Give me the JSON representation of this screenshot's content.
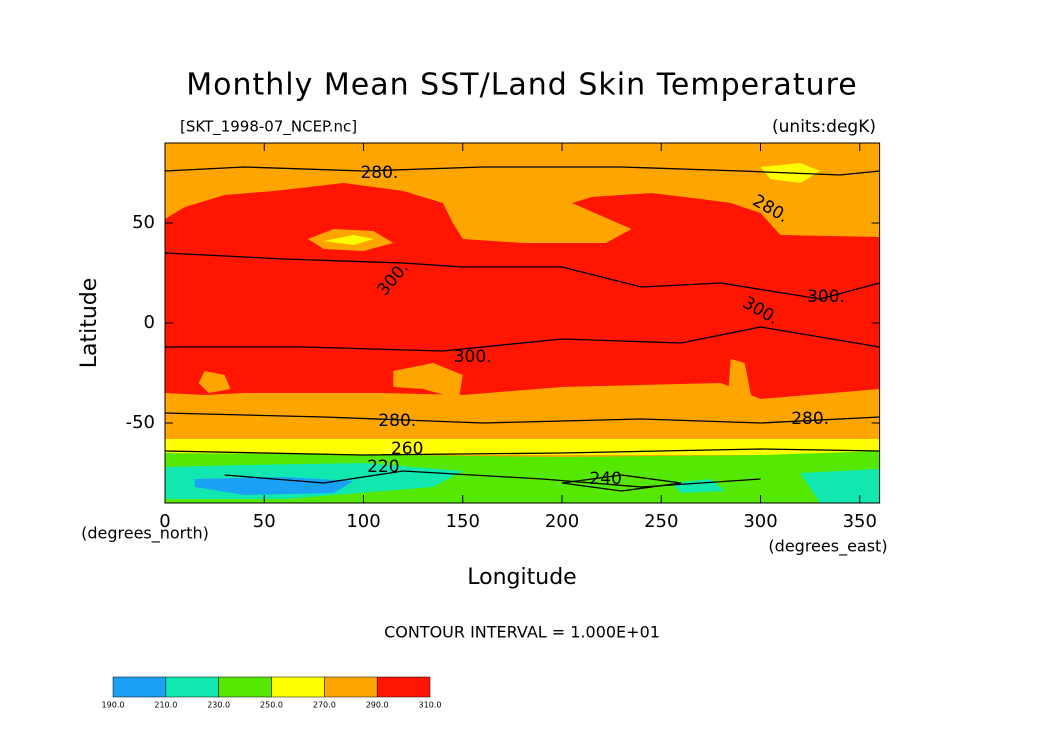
{
  "chart_data": {
    "type": "filled_contour",
    "title": "Monthly Mean SST/Land Skin Temperature",
    "subtitle_left": "[SKT_1998-07_NCEP.nc]",
    "subtitle_right": "(units:degK)",
    "xlabel": "Longitude",
    "ylabel": "Latitude",
    "x_units": "(degrees_east)",
    "y_units": "(degrees_north)",
    "annotation": "CONTOUR INTERVAL = 1.000E+01",
    "xlim": [
      0,
      360
    ],
    "ylim": [
      -90,
      90
    ],
    "xticks": [
      0,
      50,
      100,
      150,
      200,
      250,
      300,
      350
    ],
    "yticks": [
      -50,
      0,
      50
    ],
    "grid": false,
    "levels": [
      {
        "value": 190,
        "label": "190.0"
      },
      {
        "value": 210,
        "label": "210.0"
      },
      {
        "value": 230,
        "label": "230.0"
      },
      {
        "value": 250,
        "label": "250.0"
      },
      {
        "value": 270,
        "label": "270.0"
      },
      {
        "value": 290,
        "label": "290.0"
      },
      {
        "value": 310,
        "label": "310.0"
      }
    ],
    "colors": [
      "#1aa0f5",
      "#10e8b0",
      "#55e800",
      "#ffff00",
      "#ffa500",
      "#ff1500"
    ],
    "contour_labels": [
      {
        "value": 280,
        "label": "280."
      },
      {
        "value": 280,
        "label": "280."
      },
      {
        "value": 300,
        "label": "300."
      },
      {
        "value": 300,
        "label": "300."
      },
      {
        "value": 300,
        "label": "300."
      },
      {
        "value": 300,
        "label": "300."
      },
      {
        "value": 280,
        "label": "280."
      },
      {
        "value": 280,
        "label": "280."
      },
      {
        "value": 260,
        "label": "260"
      },
      {
        "value": 220,
        "label": "220"
      },
      {
        "value": 240,
        "label": "240"
      }
    ]
  }
}
